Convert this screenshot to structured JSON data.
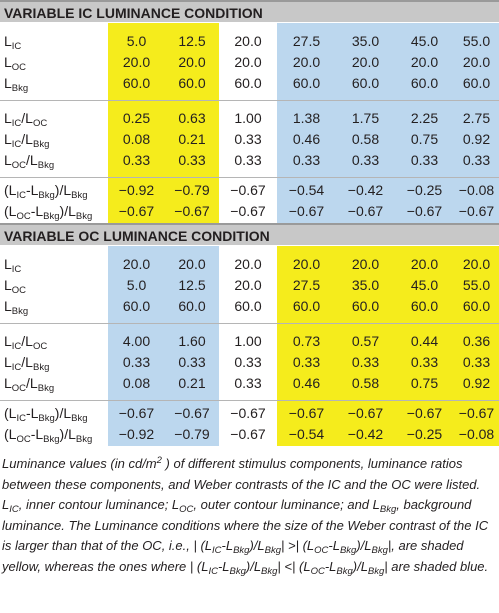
{
  "sections": [
    {
      "title": "VARIABLE IC LUMINANCE CONDITION",
      "shading": [
        "#f5ec1c",
        "#f5ec1c",
        "#ffffff",
        "#bcd7ee",
        "#bcd7ee",
        "#bcd7ee",
        "#bcd7ee"
      ],
      "groups": [
        [
          {
            "label": [
              "L",
              "IC"
            ],
            "cells": [
              "5.0",
              "12.5",
              "20.0",
              "27.5",
              "35.0",
              "45.0",
              "55.0"
            ]
          },
          {
            "label": [
              "L",
              "OC"
            ],
            "cells": [
              "20.0",
              "20.0",
              "20.0",
              "20.0",
              "20.0",
              "20.0",
              "20.0"
            ]
          },
          {
            "label": [
              "L",
              "Bkg"
            ],
            "cells": [
              "60.0",
              "60.0",
              "60.0",
              "60.0",
              "60.0",
              "60.0",
              "60.0"
            ]
          }
        ],
        [
          {
            "label": [
              "L",
              "IC",
              "/L",
              "OC"
            ],
            "cells": [
              "0.25",
              "0.63",
              "1.00",
              "1.38",
              "1.75",
              "2.25",
              "2.75"
            ]
          },
          {
            "label": [
              "L",
              "IC",
              "/L",
              "Bkg"
            ],
            "cells": [
              "0.08",
              "0.21",
              "0.33",
              "0.46",
              "0.58",
              "0.75",
              "0.92"
            ]
          },
          {
            "label": [
              "L",
              "OC",
              "/L",
              "Bkg"
            ],
            "cells": [
              "0.33",
              "0.33",
              "0.33",
              "0.33",
              "0.33",
              "0.33",
              "0.33"
            ]
          }
        ],
        [
          {
            "label": [
              "(L",
              "IC",
              "-L",
              "Bkg",
              ")/L",
              "Bkg"
            ],
            "cells": [
              "−0.92",
              "−0.79",
              "−0.67",
              "−0.54",
              "−0.42",
              "−0.25",
              "−0.08"
            ]
          },
          {
            "label": [
              "(L",
              "OC",
              "-L",
              "Bkg",
              ")/L",
              "Bkg"
            ],
            "cells": [
              "−0.67",
              "−0.67",
              "−0.67",
              "−0.67",
              "−0.67",
              "−0.67",
              "−0.67"
            ]
          }
        ]
      ]
    },
    {
      "title": "VARIABLE OC LUMINANCE CONDITION",
      "shading": [
        "#bcd7ee",
        "#bcd7ee",
        "#ffffff",
        "#f5ec1c",
        "#f5ec1c",
        "#f5ec1c",
        "#f5ec1c"
      ],
      "groups": [
        [
          {
            "label": [
              "L",
              "IC"
            ],
            "cells": [
              "20.0",
              "20.0",
              "20.0",
              "20.0",
              "20.0",
              "20.0",
              "20.0"
            ]
          },
          {
            "label": [
              "L",
              "OC"
            ],
            "cells": [
              "5.0",
              "12.5",
              "20.0",
              "27.5",
              "35.0",
              "45.0",
              "55.0"
            ]
          },
          {
            "label": [
              "L",
              "Bkg"
            ],
            "cells": [
              "60.0",
              "60.0",
              "60.0",
              "60.0",
              "60.0",
              "60.0",
              "60.0"
            ]
          }
        ],
        [
          {
            "label": [
              "L",
              "IC",
              "/L",
              "OC"
            ],
            "cells": [
              "4.00",
              "1.60",
              "1.00",
              "0.73",
              "0.57",
              "0.44",
              "0.36"
            ]
          },
          {
            "label": [
              "L",
              "IC",
              "/L",
              "Bkg"
            ],
            "cells": [
              "0.33",
              "0.33",
              "0.33",
              "0.33",
              "0.33",
              "0.33",
              "0.33"
            ]
          },
          {
            "label": [
              "L",
              "OC",
              "/L",
              "Bkg"
            ],
            "cells": [
              "0.08",
              "0.21",
              "0.33",
              "0.46",
              "0.58",
              "0.75",
              "0.92"
            ]
          }
        ],
        [
          {
            "label": [
              "(L",
              "IC",
              "-L",
              "Bkg",
              ")/L",
              "Bkg"
            ],
            "cells": [
              "−0.67",
              "−0.67",
              "−0.67",
              "−0.67",
              "−0.67",
              "−0.67",
              "−0.67"
            ]
          },
          {
            "label": [
              "(L",
              "OC",
              "-L",
              "Bkg",
              ")/L",
              "Bkg"
            ],
            "cells": [
              "−0.92",
              "−0.79",
              "−0.67",
              "−0.54",
              "−0.42",
              "−0.25",
              "−0.08"
            ]
          }
        ]
      ]
    }
  ],
  "caption": [
    "Luminance values (in cd/m",
    {
      "sup": "2"
    },
    " ) of different stimulus components, luminance ratios between these components, and Weber contrasts of the IC and the OC were listed. L",
    {
      "sub": "IC"
    },
    ", inner contour luminance; L",
    {
      "sub": "OC"
    },
    ", outer contour luminance; and L",
    {
      "sub": "Bkg"
    },
    ", background luminance. The Luminance conditions where the size of the Weber contrast of the IC is larger than that of the OC, i.e., | (L",
    {
      "sub": "IC"
    },
    "-L",
    {
      "sub": "Bkg"
    },
    ")/L",
    {
      "sub": "Bkg"
    },
    "| >| (L",
    {
      "sub": "OC"
    },
    "-L",
    {
      "sub": "Bkg"
    },
    ")/L",
    {
      "sub": "Bkg"
    },
    "|, are shaded yellow, whereas the ones where | (L",
    {
      "sub": "IC"
    },
    "-L",
    {
      "sub": "Bkg"
    },
    ")/L",
    {
      "sub": "Bkg"
    },
    "| <| (L",
    {
      "sub": "OC"
    },
    "-L",
    {
      "sub": "Bkg"
    },
    ")/L",
    {
      "sub": "Bkg"
    },
    "| are shaded blue."
  ]
}
